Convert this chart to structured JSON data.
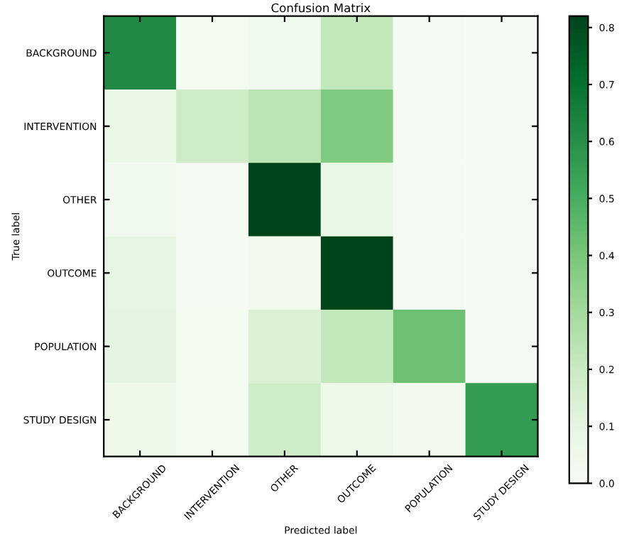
{
  "chart_data": {
    "type": "heatmap",
    "title": "Confusion Matrix",
    "xlabel": "Predicted label",
    "ylabel": "True label",
    "categories": [
      "BACKGROUND",
      "INTERVENTION",
      "OTHER",
      "OUTCOME",
      "POPULATION",
      "STUDY DESIGN"
    ],
    "y_categories": [
      "BACKGROUND",
      "INTERVENTION",
      "OTHER",
      "OUTCOME",
      "POPULATION",
      "STUDY DESIGN"
    ],
    "cells": [
      [
        0.62,
        0.02,
        0.04,
        0.22,
        0.01,
        0.01
      ],
      [
        0.07,
        0.18,
        0.24,
        0.38,
        0.01,
        0.01
      ],
      [
        0.04,
        0.01,
        0.82,
        0.08,
        0.01,
        0.01
      ],
      [
        0.09,
        0.01,
        0.03,
        0.82,
        0.01,
        0.01
      ],
      [
        0.1,
        0.02,
        0.14,
        0.22,
        0.42,
        0.01
      ],
      [
        0.06,
        0.02,
        0.18,
        0.06,
        0.03,
        0.56
      ]
    ],
    "clim": [
      0,
      0.82
    ],
    "cticks": [
      {
        "value": 0,
        "label": "0.0"
      },
      0.1,
      0.2,
      0.3,
      0.4,
      0.5,
      0.6,
      0.7,
      0.8
    ]
  }
}
